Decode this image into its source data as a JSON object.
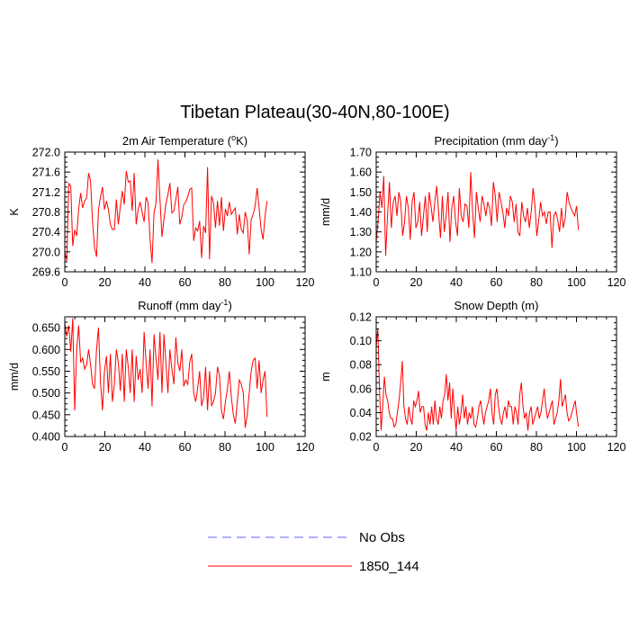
{
  "figure": {
    "title": "Tibetan Plateau(30-40N,80-100E)",
    "legend": {
      "placement": "bottom-center",
      "entries": [
        {
          "label": "No Obs",
          "color": "#6060ff",
          "dash": "dashed"
        },
        {
          "label": "1850_144",
          "color": "#ff0000",
          "dash": "solid"
        }
      ]
    }
  },
  "chart_data": [
    {
      "type": "line",
      "title": "2m Air Temperature (oK)",
      "title_parts": {
        "main": "2m Air Temperature (",
        "sup": "o",
        "tail": "K)"
      },
      "xlabel": "",
      "ylabel": "K",
      "xlim": [
        0,
        120
      ],
      "ylim": [
        269.6,
        272.0
      ],
      "xticks": [
        0,
        20,
        40,
        60,
        80,
        100,
        120
      ],
      "yticks": [
        269.6,
        270.0,
        270.4,
        270.8,
        271.2,
        271.6,
        272.0
      ],
      "ytick_labels": [
        "269.6",
        "270.0",
        "270.4",
        "270.8",
        "271.2",
        "271.6",
        "272.0"
      ],
      "series": [
        {
          "color": "#ff0000",
          "values": [
            270.0,
            269.82,
            271.37,
            271.32,
            270.12,
            270.44,
            270.32,
            270.86,
            271.18,
            270.88,
            271.02,
            271.08,
            271.58,
            271.42,
            270.6,
            270.1,
            269.9,
            270.85,
            271.1,
            271.3,
            270.85,
            271.02,
            270.85,
            270.55,
            270.45,
            270.45,
            271.05,
            270.55,
            270.9,
            271.22,
            270.95,
            271.62,
            271.4,
            271.42,
            270.82,
            271.58,
            270.55,
            270.85,
            271.0,
            270.8,
            270.6,
            271.1,
            270.98,
            270.25,
            269.78,
            270.78,
            270.98,
            271.85,
            271.05,
            270.3,
            270.65,
            270.96,
            271.15,
            271.38,
            270.78,
            270.82,
            271.05,
            271.3,
            270.55,
            270.7,
            270.95,
            271.0,
            271.1,
            271.25,
            271.28,
            270.22,
            270.48,
            270.42,
            270.62,
            269.88,
            270.52,
            270.38,
            271.7,
            269.85,
            271.12,
            270.98,
            270.48,
            271.02,
            270.52,
            271.1,
            270.42,
            270.86,
            270.72,
            271.0,
            270.75,
            270.82,
            270.88,
            270.35,
            270.75,
            270.45,
            270.38,
            270.8,
            270.62,
            269.95,
            270.65,
            270.75,
            270.92,
            271.28,
            270.88,
            270.45,
            270.25,
            270.72,
            271.02
          ]
        }
      ]
    },
    {
      "type": "line",
      "title": "Precipitation (mm day-1)",
      "title_parts": {
        "main": "Precipitation (mm day",
        "sup": "-1",
        "tail": ")"
      },
      "xlabel": "",
      "ylabel": "mm/d",
      "xlim": [
        0,
        120
      ],
      "ylim": [
        1.1,
        1.7
      ],
      "xticks": [
        0,
        20,
        40,
        60,
        80,
        100,
        120
      ],
      "yticks": [
        1.1,
        1.2,
        1.3,
        1.4,
        1.5,
        1.6,
        1.7
      ],
      "ytick_labels": [
        "1.10",
        "1.20",
        "1.30",
        "1.40",
        "1.50",
        "1.60",
        "1.70"
      ],
      "series": [
        {
          "color": "#ff0000",
          "values": [
            1.25,
            1.35,
            1.5,
            1.42,
            1.58,
            1.18,
            1.38,
            1.55,
            1.32,
            1.45,
            1.48,
            1.38,
            1.5,
            1.45,
            1.28,
            1.35,
            1.48,
            1.42,
            1.26,
            1.45,
            1.5,
            1.32,
            1.35,
            1.45,
            1.28,
            1.38,
            1.48,
            1.3,
            1.5,
            1.43,
            1.35,
            1.45,
            1.53,
            1.4,
            1.27,
            1.48,
            1.3,
            1.38,
            1.5,
            1.25,
            1.42,
            1.48,
            1.35,
            1.28,
            1.52,
            1.38,
            1.35,
            1.44,
            1.43,
            1.32,
            1.6,
            1.4,
            1.27,
            1.5,
            1.42,
            1.35,
            1.48,
            1.44,
            1.38,
            1.45,
            1.42,
            1.33,
            1.55,
            1.48,
            1.35,
            1.5,
            1.45,
            1.4,
            1.32,
            1.42,
            1.38,
            1.48,
            1.45,
            1.35,
            1.44,
            1.3,
            1.28,
            1.45,
            1.38,
            1.35,
            1.42,
            1.32,
            1.4,
            1.52,
            1.43,
            1.28,
            1.36,
            1.45,
            1.38,
            1.4,
            1.34,
            1.4,
            1.4,
            1.22,
            1.38,
            1.4,
            1.36,
            1.3,
            1.42,
            1.32,
            1.37,
            1.5,
            1.45,
            1.42,
            1.4,
            1.38,
            1.43,
            1.31
          ]
        }
      ]
    },
    {
      "type": "line",
      "title": "Runoff (mm day-1)",
      "title_parts": {
        "main": "Runoff (mm day",
        "sup": "-1",
        "tail": ")"
      },
      "xlabel": "",
      "ylabel": "mm/d",
      "xlim": [
        0,
        120
      ],
      "ylim": [
        0.4,
        0.675
      ],
      "xticks": [
        0,
        20,
        40,
        60,
        80,
        100,
        120
      ],
      "yticks": [
        0.4,
        0.45,
        0.5,
        0.55,
        0.6,
        0.65
      ],
      "ytick_labels": [
        "0.400",
        "0.450",
        "0.500",
        "0.550",
        "0.600",
        "0.650"
      ],
      "series": [
        {
          "color": "#ff0000",
          "values": [
            0.66,
            0.63,
            0.655,
            0.595,
            0.672,
            0.46,
            0.6,
            0.655,
            0.57,
            0.58,
            0.555,
            0.565,
            0.6,
            0.565,
            0.52,
            0.51,
            0.6,
            0.65,
            0.525,
            0.46,
            0.55,
            0.585,
            0.5,
            0.59,
            0.48,
            0.52,
            0.6,
            0.57,
            0.505,
            0.59,
            0.48,
            0.6,
            0.56,
            0.5,
            0.6,
            0.48,
            0.585,
            0.53,
            0.555,
            0.5,
            0.64,
            0.57,
            0.51,
            0.6,
            0.47,
            0.635,
            0.58,
            0.53,
            0.64,
            0.5,
            0.635,
            0.57,
            0.5,
            0.6,
            0.555,
            0.52,
            0.628,
            0.57,
            0.55,
            0.6,
            0.515,
            0.53,
            0.52,
            0.57,
            0.59,
            0.5,
            0.48,
            0.51,
            0.55,
            0.47,
            0.49,
            0.56,
            0.46,
            0.55,
            0.47,
            0.48,
            0.5,
            0.56,
            0.54,
            0.46,
            0.44,
            0.48,
            0.51,
            0.55,
            0.49,
            0.45,
            0.43,
            0.48,
            0.53,
            0.52,
            0.5,
            0.42,
            0.45,
            0.5,
            0.55,
            0.575,
            0.58,
            0.51,
            0.575,
            0.5,
            0.53,
            0.55,
            0.445
          ]
        }
      ]
    },
    {
      "type": "line",
      "title": "Snow Depth (m)",
      "title_parts": {
        "main": "Snow Depth (m)",
        "sup": "",
        "tail": ""
      },
      "xlabel": "",
      "ylabel": "m",
      "xlim": [
        0,
        120
      ],
      "ylim": [
        0.02,
        0.12
      ],
      "xticks": [
        0,
        20,
        40,
        60,
        80,
        100,
        120
      ],
      "yticks": [
        0.02,
        0.04,
        0.06,
        0.08,
        0.1,
        0.12
      ],
      "ytick_labels": [
        "0.02",
        "0.04",
        "0.06",
        "0.08",
        "0.10",
        "0.12"
      ],
      "series": [
        {
          "color": "#ff0000",
          "values": [
            0.095,
            0.11,
            0.06,
            0.025,
            0.045,
            0.07,
            0.055,
            0.05,
            0.04,
            0.035,
            0.035,
            0.028,
            0.03,
            0.04,
            0.05,
            0.065,
            0.083,
            0.045,
            0.035,
            0.03,
            0.045,
            0.035,
            0.03,
            0.05,
            0.045,
            0.05,
            0.058,
            0.04,
            0.045,
            0.045,
            0.03,
            0.025,
            0.04,
            0.03,
            0.045,
            0.03,
            0.05,
            0.035,
            0.03,
            0.045,
            0.035,
            0.05,
            0.055,
            0.072,
            0.05,
            0.065,
            0.035,
            0.06,
            0.04,
            0.025,
            0.045,
            0.03,
            0.04,
            0.055,
            0.035,
            0.045,
            0.03,
            0.04,
            0.035,
            0.045,
            0.03,
            0.028,
            0.035,
            0.045,
            0.05,
            0.04,
            0.03,
            0.04,
            0.045,
            0.05,
            0.06,
            0.04,
            0.03,
            0.055,
            0.06,
            0.045,
            0.035,
            0.03,
            0.04,
            0.045,
            0.035,
            0.05,
            0.045,
            0.045,
            0.03,
            0.045,
            0.04,
            0.03,
            0.055,
            0.065,
            0.045,
            0.035,
            0.04,
            0.025,
            0.04,
            0.045,
            0.03,
            0.035,
            0.04,
            0.045,
            0.035,
            0.04,
            0.05,
            0.06,
            0.045,
            0.035,
            0.04,
            0.045,
            0.05,
            0.03,
            0.035,
            0.04,
            0.05,
            0.068,
            0.045,
            0.05,
            0.055,
            0.04,
            0.033,
            0.035,
            0.04,
            0.045,
            0.05,
            0.038,
            0.028
          ]
        }
      ]
    }
  ]
}
